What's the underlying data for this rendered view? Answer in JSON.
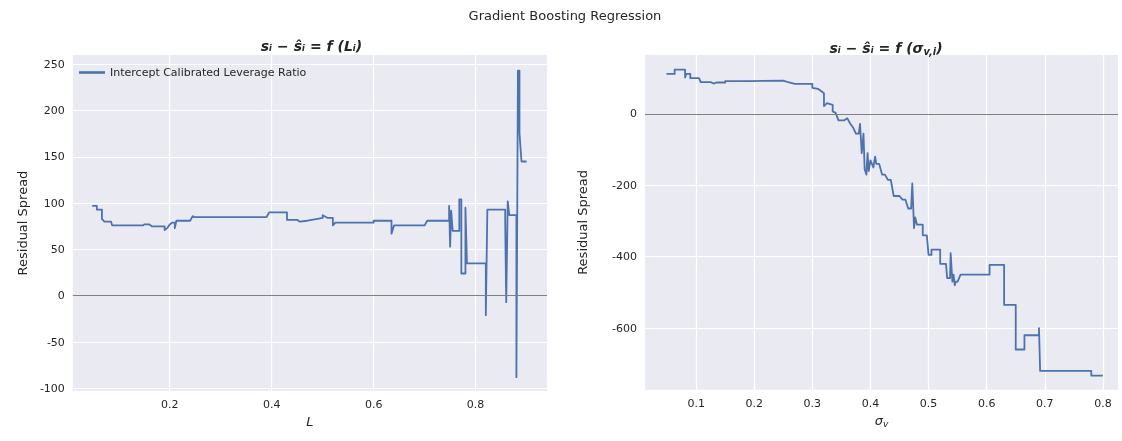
{
  "chart_data": [
    {
      "type": "line",
      "title": "Gradient Boosting Regression",
      "subtitle": "sᵢ − ŝᵢ = f (Lᵢ)",
      "xlabel": "L",
      "ylabel": "Residual Spread",
      "xlim": [
        0.01,
        0.94
      ],
      "ylim": [
        -103,
        260
      ],
      "xticks": [
        0.2,
        0.4,
        0.6,
        0.8
      ],
      "yticks": [
        -100,
        -50,
        0,
        50,
        100,
        150,
        200,
        250
      ],
      "grid": true,
      "legend": "top left",
      "ref_lines": [
        {
          "axis": "y",
          "value": 0,
          "color": "#808080"
        }
      ],
      "series": [
        {
          "name": "Intercept Calibrated Leverage Ratio",
          "color": "#4c72b0",
          "x": [
            0.048,
            0.057,
            0.057,
            0.067,
            0.067,
            0.072,
            0.085,
            0.087,
            0.148,
            0.15,
            0.16,
            0.165,
            0.19,
            0.19,
            0.195,
            0.2,
            0.205,
            0.21,
            0.21,
            0.213,
            0.24,
            0.245,
            0.248,
            0.39,
            0.395,
            0.43,
            0.43,
            0.45,
            0.455,
            0.47,
            0.49,
            0.5,
            0.5,
            0.51,
            0.52,
            0.52,
            0.525,
            0.6,
            0.6,
            0.635,
            0.635,
            0.64,
            0.7,
            0.705,
            0.748,
            0.748,
            0.75,
            0.752,
            0.755,
            0.768,
            0.768,
            0.772,
            0.772,
            0.78,
            0.78,
            0.783,
            0.82,
            0.82,
            0.823,
            0.858,
            0.858,
            0.86,
            0.863,
            0.866,
            0.88,
            0.88,
            0.883,
            0.886,
            0.886,
            0.888,
            0.89,
            0.9
          ],
          "values": [
            97,
            97,
            93,
            93,
            83,
            80,
            80,
            76,
            76,
            77,
            77,
            75,
            75,
            71,
            73,
            77,
            79,
            79,
            73,
            81,
            81,
            86,
            85,
            85,
            90,
            90,
            82,
            82,
            80,
            81,
            83,
            84,
            87,
            84,
            84,
            76,
            79,
            79,
            81,
            81,
            67,
            76,
            76,
            81,
            81,
            97,
            53,
            92,
            70,
            70,
            104,
            104,
            24,
            24,
            95,
            35,
            35,
            -21,
            93,
            93,
            80,
            -7,
            102,
            87,
            87,
            -88,
            243,
            243,
            176,
            160,
            145,
            145
          ]
        }
      ]
    },
    {
      "type": "line",
      "subtitle": "sᵢ − ŝᵢ = f (σ$_{v,i}$)",
      "xlabel": "σ$_{v}$",
      "ylabel": "Residual Spread",
      "xlim": [
        0.012,
        0.826
      ],
      "ylim": [
        -773,
        165
      ],
      "xticks": [
        0.1,
        0.2,
        0.3,
        0.4,
        0.5,
        0.6,
        0.7,
        0.8
      ],
      "yticks": [
        -600,
        -400,
        -200,
        0
      ],
      "grid": true,
      "ref_lines": [
        {
          "axis": "y",
          "value": 0,
          "color": "#808080"
        }
      ],
      "series": [
        {
          "color": "#4c72b0",
          "x": [
            0.049,
            0.063,
            0.063,
            0.081,
            0.081,
            0.083,
            0.09,
            0.09,
            0.105,
            0.108,
            0.125,
            0.13,
            0.135,
            0.15,
            0.15,
            0.19,
            0.19,
            0.25,
            0.26,
            0.27,
            0.3,
            0.3,
            0.31,
            0.315,
            0.32,
            0.32,
            0.325,
            0.335,
            0.335,
            0.34,
            0.345,
            0.355,
            0.36,
            0.365,
            0.37,
            0.375,
            0.38,
            0.382,
            0.385,
            0.388,
            0.39,
            0.393,
            0.395,
            0.397,
            0.4,
            0.405,
            0.408,
            0.41,
            0.415,
            0.42,
            0.425,
            0.43,
            0.435,
            0.44,
            0.45,
            0.455,
            0.46,
            0.465,
            0.47,
            0.472,
            0.475,
            0.477,
            0.48,
            0.49,
            0.49,
            0.497,
            0.5,
            0.505,
            0.505,
            0.52,
            0.52,
            0.53,
            0.532,
            0.537,
            0.538,
            0.541,
            0.543,
            0.545,
            0.547,
            0.55,
            0.555,
            0.605,
            0.605,
            0.63,
            0.63,
            0.65,
            0.65,
            0.665,
            0.665,
            0.69,
            0.69,
            0.692,
            0.78,
            0.78,
            0.8
          ],
          "values": [
            112,
            112,
            124,
            124,
            102,
            112,
            112,
            100,
            100,
            89,
            89,
            85,
            88,
            88,
            92,
            92,
            93,
            93,
            88,
            84,
            84,
            73,
            70,
            64,
            58,
            22,
            30,
            25,
            7,
            3,
            -18,
            -18,
            -12,
            -27,
            -38,
            -55,
            -55,
            -28,
            -110,
            -55,
            -155,
            -170,
            -110,
            -160,
            -130,
            -150,
            -120,
            -140,
            -140,
            -170,
            -170,
            -185,
            -185,
            -230,
            -230,
            -240,
            -240,
            -265,
            -265,
            -195,
            -320,
            -290,
            -310,
            -310,
            -340,
            -340,
            -395,
            -395,
            -380,
            -380,
            -420,
            -420,
            -460,
            -460,
            -390,
            -470,
            -450,
            -480,
            -470,
            -470,
            -450,
            -450,
            -423,
            -423,
            -535,
            -535,
            -660,
            -660,
            -620,
            -620,
            -600,
            -720,
            -720,
            -733,
            -733
          ]
        }
      ]
    }
  ]
}
